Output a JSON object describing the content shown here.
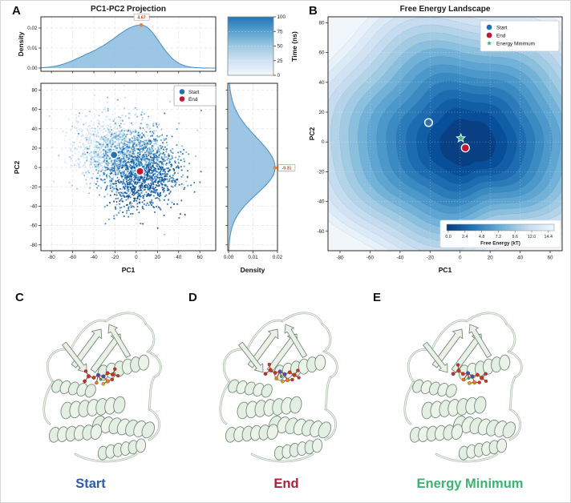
{
  "panels": {
    "A": {
      "letter": "A",
      "title": "PC1-PC2 Projection"
    },
    "B": {
      "letter": "B",
      "title": "Free Energy Landscape"
    },
    "C": {
      "letter": "C",
      "caption": "Start",
      "caption_color": "#2b5cad"
    },
    "D": {
      "letter": "D",
      "caption": "End",
      "caption_color": "#b21e35"
    },
    "E": {
      "letter": "E",
      "caption": "Energy Minimum",
      "caption_color": "#3cb371"
    }
  },
  "colors": {
    "accent_orange": "#e8833a",
    "annotation_text": "#c0392b",
    "start_blue": "#2171b5",
    "end_crimson": "#bf1734",
    "energy_min_green": "#3cb371",
    "density_fill": "#8cbcdf",
    "density_edge": "#4f94c6"
  },
  "chart_data": [
    {
      "id": "pc1_marginal_density",
      "type": "area",
      "ylabel": "Density",
      "y_ticks": [
        "0.00",
        "0.01",
        "0.02"
      ],
      "x_range": [
        -90,
        75
      ],
      "peak_annotation": {
        "x": 4.67,
        "density": 0.0215,
        "label": "4.67"
      },
      "shape": {
        "mean": 4.67,
        "sigma_left": 28,
        "sigma_right": 17,
        "amp": 0.0215,
        "shoulder": {
          "mean": -48,
          "sigma": 16,
          "amp": 0.003
        }
      }
    },
    {
      "id": "pc_scatter",
      "type": "scatter",
      "title": "PC1-PC2 Projection",
      "xlabel": "PC1",
      "ylabel": "PC2",
      "x_ticks": [
        -80,
        -60,
        -40,
        -20,
        0,
        20,
        40,
        60
      ],
      "y_ticks": [
        -80,
        -60,
        -40,
        -20,
        0,
        20,
        40,
        60,
        80
      ],
      "x_range": [
        -90,
        75
      ],
      "y_range": [
        -86,
        87
      ],
      "n_points": 2600,
      "color_by": "Time (ns)",
      "time_range": [
        0,
        100
      ],
      "walk_path": [
        [
          -40,
          22
        ],
        [
          -12,
          16
        ],
        [
          18,
          6
        ],
        [
          4,
          -20
        ]
      ],
      "spread": 15,
      "legend": [
        {
          "label": "Start",
          "color": "#2171b5"
        },
        {
          "label": "End",
          "color": "#bf1734"
        }
      ],
      "markers": {
        "start": {
          "x": -21,
          "y": 13
        },
        "end": {
          "x": 3.5,
          "y": -4
        }
      }
    },
    {
      "id": "pc2_marginal_density",
      "type": "area",
      "xlabel": "Density",
      "x_ticks": [
        "0.00",
        "0.01",
        "0.02"
      ],
      "y_range": [
        -86,
        87
      ],
      "peak_annotation": {
        "y": -0.31,
        "density": 0.019,
        "label": "-0.31"
      },
      "shape": {
        "mean": -0.31,
        "sigma_up": 31,
        "sigma_down": 27,
        "amp": 0.019
      }
    },
    {
      "id": "time_colorbar",
      "type": "colorbar",
      "label": "Time (ns)",
      "ticks": [
        0,
        25,
        50,
        75,
        100
      ]
    },
    {
      "id": "free_energy_landscape",
      "type": "heatmap",
      "title": "Free Energy Landscape",
      "xlabel": "PC1",
      "ylabel": "PC2",
      "x_ticks": [
        -80,
        -60,
        -40,
        -20,
        0,
        20,
        40,
        60
      ],
      "y_ticks": [
        -60,
        -40,
        -20,
        0,
        20,
        40,
        60,
        80
      ],
      "x_range": [
        -88,
        68
      ],
      "y_range": [
        -73,
        84
      ],
      "n_levels": 16,
      "colorbar": {
        "label": "Free Energy (kT)",
        "ticks": [
          "0.0",
          "2.4",
          "4.8",
          "7.2",
          "9.6",
          "12.0",
          "14.4"
        ]
      },
      "legend": [
        {
          "label": "Start",
          "color": "#2171b5",
          "marker": "circle"
        },
        {
          "label": "End",
          "color": "#bf1734",
          "marker": "circle"
        },
        {
          "label": "Energy Minimum",
          "color": "#3cb371",
          "marker": "star"
        }
      ],
      "markers": {
        "start": {
          "x": -21,
          "y": 13
        },
        "end": {
          "x": 3.5,
          "y": -4
        },
        "energy_minimum": {
          "x": 0.5,
          "y": 2.5
        }
      }
    }
  ]
}
